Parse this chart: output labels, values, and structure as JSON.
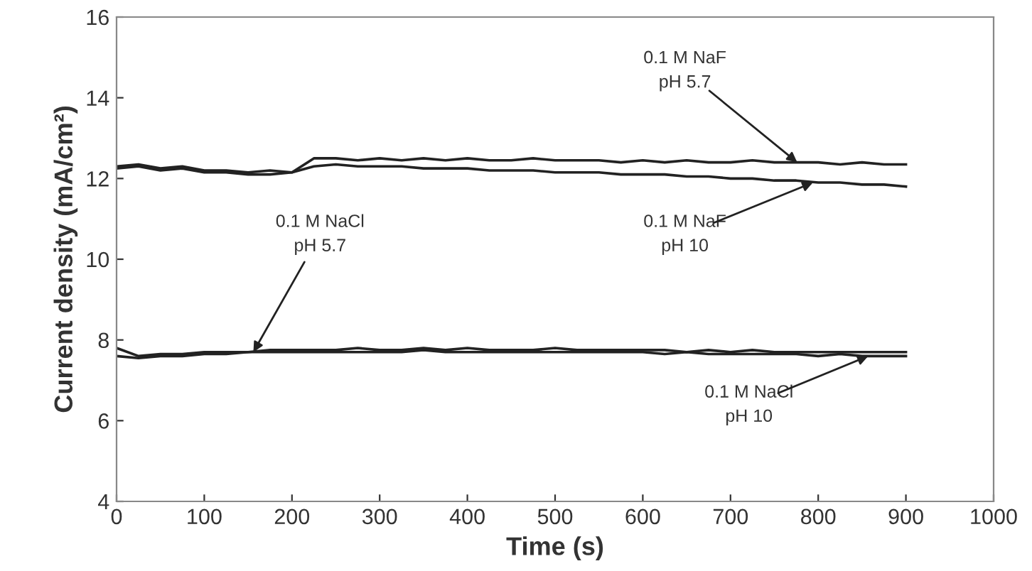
{
  "chart_data": {
    "type": "line",
    "xlabel": "Time (s)",
    "ylabel": "Current density (mA/cm²)",
    "x": [
      0,
      25,
      50,
      75,
      100,
      125,
      150,
      175,
      200,
      225,
      250,
      275,
      300,
      325,
      350,
      375,
      400,
      425,
      450,
      475,
      500,
      525,
      550,
      575,
      600,
      625,
      650,
      675,
      700,
      725,
      750,
      775,
      800,
      825,
      850,
      875,
      900
    ],
    "series": [
      {
        "color": "#222222",
        "values": [
          12.3,
          12.35,
          12.25,
          12.3,
          12.2,
          12.2,
          12.15,
          12.2,
          12.15,
          12.5,
          12.5,
          12.45,
          12.5,
          12.45,
          12.5,
          12.45,
          12.5,
          12.45,
          12.45,
          12.5,
          12.45,
          12.45,
          12.45,
          12.4,
          12.45,
          12.4,
          12.45,
          12.4,
          12.4,
          12.45,
          12.4,
          12.4,
          12.4,
          12.35,
          12.4,
          12.35,
          12.35
        ]
      },
      {
        "color": "#222222",
        "values": [
          12.25,
          12.3,
          12.2,
          12.25,
          12.15,
          12.15,
          12.1,
          12.1,
          12.15,
          12.3,
          12.35,
          12.3,
          12.3,
          12.3,
          12.25,
          12.25,
          12.25,
          12.2,
          12.2,
          12.2,
          12.15,
          12.15,
          12.15,
          12.1,
          12.1,
          12.1,
          12.05,
          12.05,
          12.0,
          12.0,
          11.95,
          11.95,
          11.9,
          11.9,
          11.85,
          11.85,
          11.8
        ]
      },
      {
        "color": "#222222",
        "values": [
          7.8,
          7.6,
          7.65,
          7.65,
          7.7,
          7.7,
          7.7,
          7.75,
          7.75,
          7.75,
          7.75,
          7.8,
          7.75,
          7.75,
          7.8,
          7.75,
          7.8,
          7.75,
          7.75,
          7.75,
          7.8,
          7.75,
          7.75,
          7.75,
          7.75,
          7.75,
          7.7,
          7.75,
          7.7,
          7.75,
          7.7,
          7.7,
          7.7,
          7.7,
          7.7,
          7.7,
          7.7
        ]
      },
      {
        "color": "#222222",
        "values": [
          7.6,
          7.55,
          7.6,
          7.6,
          7.65,
          7.65,
          7.7,
          7.7,
          7.7,
          7.7,
          7.7,
          7.7,
          7.7,
          7.7,
          7.75,
          7.7,
          7.7,
          7.7,
          7.7,
          7.7,
          7.7,
          7.7,
          7.7,
          7.7,
          7.7,
          7.65,
          7.7,
          7.65,
          7.65,
          7.65,
          7.65,
          7.65,
          7.6,
          7.65,
          7.6,
          7.6,
          7.6
        ]
      }
    ],
    "xlim": [
      0,
      1000
    ],
    "xticks": [
      0,
      100,
      200,
      300,
      400,
      500,
      600,
      700,
      800,
      900,
      1000
    ],
    "ylim": [
      4,
      16
    ],
    "yticks": [
      4,
      6,
      8,
      10,
      12,
      14,
      16
    ],
    "grid": false,
    "line_style": "solid",
    "annotations": [
      {
        "text": "0.1 M NaF\npH 5.7",
        "x": 776,
        "y": 12.4
      },
      {
        "text": "0.1 M NaF\npH 10",
        "x": 794,
        "y": 11.9
      },
      {
        "text": "0.1 M NaCl\npH 5.7",
        "x": 156,
        "y": 7.7
      },
      {
        "text": "0.1 M NaCl\npH 10",
        "x": 857,
        "y": 7.6
      }
    ]
  }
}
